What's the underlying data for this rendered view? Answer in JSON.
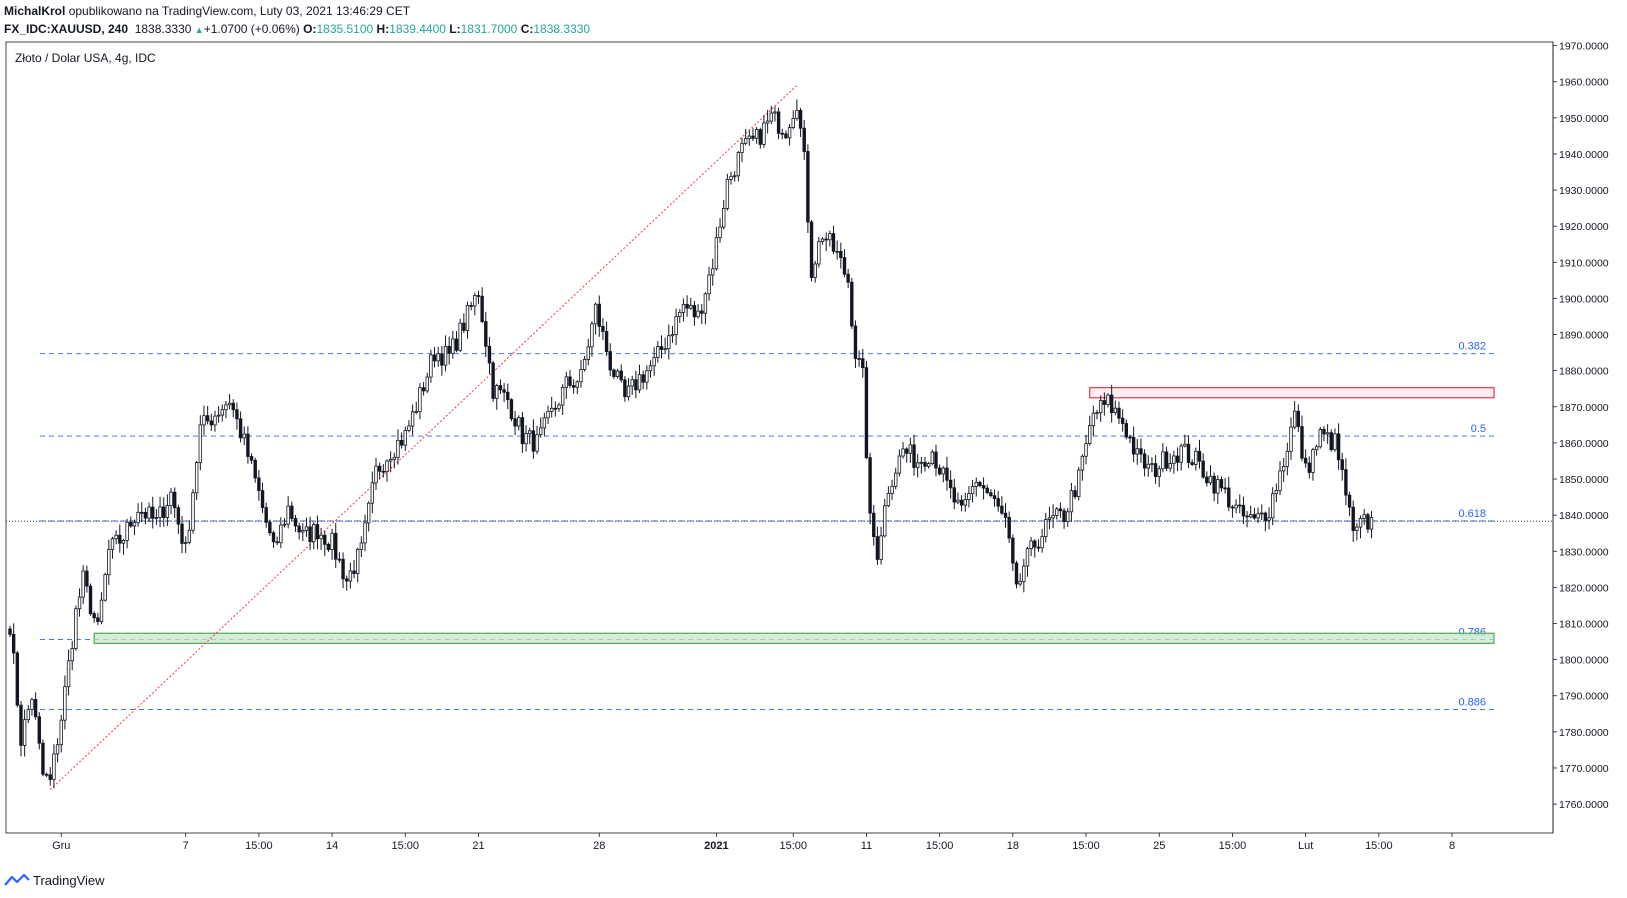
{
  "header": {
    "author": "MichalKrol",
    "published": "opublikowano na TradingView.com, Luty 03, 2021 13:46:29 CET",
    "symbol": "FX_IDC:XAUUSD, 240",
    "last": "1838.3330",
    "change": "+1.0700 (+0.06%)",
    "o_label": "O:",
    "o_value": "1835.5100",
    "h_label": "H:",
    "h_value": "1839.4400",
    "l_label": "L:",
    "l_value": "1831.7000",
    "c_label": "C:",
    "c_value": "1838.3330"
  },
  "footer": {
    "brand": "TradingView"
  },
  "colors": {
    "candle": "#131722",
    "fib_line": "#2962ff",
    "fib_text": "#2962ff",
    "trend": "#f23645",
    "support_fill": "#c8e6c9",
    "support_border": "#4caf50",
    "resistance_fill": "#fde7e9",
    "resistance_border": "#f23645",
    "axis_text": "#131722"
  },
  "chart_data": {
    "type": "candlestick",
    "title": "Złoto / Dolar USA, 4g, IDC",
    "ylim": [
      1752,
      1971
    ],
    "y_ticks": [
      "1760.0000",
      "1770.0000",
      "1780.0000",
      "1790.0000",
      "1800.0000",
      "1810.0000",
      "1820.0000",
      "1830.0000",
      "1840.0000",
      "1850.0000",
      "1860.0000",
      "1870.0000",
      "1880.0000",
      "1890.0000",
      "1900.0000",
      "1910.0000",
      "1920.0000",
      "1930.0000",
      "1940.0000",
      "1950.0000",
      "1960.0000",
      "1970.0000"
    ],
    "x_ticks": [
      {
        "label": "Gru",
        "i": 14
      },
      {
        "label": "7",
        "i": 48
      },
      {
        "label": "15:00",
        "i": 68
      },
      {
        "label": "14",
        "i": 88
      },
      {
        "label": "15:00",
        "i": 108
      },
      {
        "label": "21",
        "i": 128
      },
      {
        "label": "28",
        "i": 161
      },
      {
        "label": "2021",
        "i": 193,
        "bold": true
      },
      {
        "label": "15:00",
        "i": 214
      },
      {
        "label": "11",
        "i": 234
      },
      {
        "label": "15:00",
        "i": 254
      },
      {
        "label": "18",
        "i": 274
      },
      {
        "label": "15:00",
        "i": 294
      },
      {
        "label": "25",
        "i": 314
      },
      {
        "label": "15:00",
        "i": 334
      },
      {
        "label": "Lut",
        "i": 354
      },
      {
        "label": "15:00",
        "i": 374
      },
      {
        "label": "8",
        "i": 394
      }
    ],
    "fib_levels": [
      {
        "label": "0.382",
        "y": 1884.7
      },
      {
        "label": "0.5",
        "y": 1861.9
      },
      {
        "label": "0.618",
        "y": 1838.4
      },
      {
        "label": "0.786",
        "y": 1805.6
      },
      {
        "label": "0.886",
        "y": 1786.2
      }
    ],
    "current_price": 1838.333,
    "trendline": {
      "from": {
        "i": 11,
        "y": 1764
      },
      "to": {
        "i": 215,
        "y": 1959
      }
    },
    "zones": [
      {
        "name": "support",
        "i_start": 23,
        "y_low": 1804.5,
        "y_high": 1807.3
      },
      {
        "name": "resistance",
        "i_start": 295,
        "y_low": 1872.5,
        "y_high": 1875.3
      }
    ],
    "anchors": [
      {
        "i": 0,
        "p": 1810
      },
      {
        "i": 3,
        "p": 1778
      },
      {
        "i": 6,
        "p": 1790
      },
      {
        "i": 9,
        "p": 1768
      },
      {
        "i": 11,
        "p": 1766
      },
      {
        "i": 14,
        "p": 1784
      },
      {
        "i": 18,
        "p": 1813
      },
      {
        "i": 20,
        "p": 1822
      },
      {
        "i": 24,
        "p": 1808
      },
      {
        "i": 27,
        "p": 1830
      },
      {
        "i": 31,
        "p": 1834
      },
      {
        "i": 35,
        "p": 1842
      },
      {
        "i": 40,
        "p": 1838
      },
      {
        "i": 44,
        "p": 1846
      },
      {
        "i": 48,
        "p": 1830
      },
      {
        "i": 52,
        "p": 1864
      },
      {
        "i": 56,
        "p": 1868
      },
      {
        "i": 60,
        "p": 1872
      },
      {
        "i": 64,
        "p": 1860
      },
      {
        "i": 68,
        "p": 1846
      },
      {
        "i": 72,
        "p": 1830
      },
      {
        "i": 76,
        "p": 1842
      },
      {
        "i": 80,
        "p": 1834
      },
      {
        "i": 84,
        "p": 1836
      },
      {
        "i": 88,
        "p": 1832
      },
      {
        "i": 92,
        "p": 1822
      },
      {
        "i": 96,
        "p": 1830
      },
      {
        "i": 100,
        "p": 1852
      },
      {
        "i": 104,
        "p": 1858
      },
      {
        "i": 108,
        "p": 1862
      },
      {
        "i": 112,
        "p": 1873
      },
      {
        "i": 116,
        "p": 1885
      },
      {
        "i": 120,
        "p": 1884
      },
      {
        "i": 124,
        "p": 1893
      },
      {
        "i": 128,
        "p": 1902
      },
      {
        "i": 132,
        "p": 1875
      },
      {
        "i": 136,
        "p": 1872
      },
      {
        "i": 140,
        "p": 1862
      },
      {
        "i": 144,
        "p": 1860
      },
      {
        "i": 148,
        "p": 1868
      },
      {
        "i": 152,
        "p": 1876
      },
      {
        "i": 156,
        "p": 1878
      },
      {
        "i": 160,
        "p": 1897
      },
      {
        "i": 164,
        "p": 1882
      },
      {
        "i": 168,
        "p": 1872
      },
      {
        "i": 172,
        "p": 1878
      },
      {
        "i": 176,
        "p": 1882
      },
      {
        "i": 180,
        "p": 1890
      },
      {
        "i": 184,
        "p": 1898
      },
      {
        "i": 188,
        "p": 1895
      },
      {
        "i": 192,
        "p": 1910
      },
      {
        "i": 196,
        "p": 1932
      },
      {
        "i": 200,
        "p": 1941
      },
      {
        "i": 204,
        "p": 1944
      },
      {
        "i": 208,
        "p": 1950
      },
      {
        "i": 212,
        "p": 1947
      },
      {
        "i": 215,
        "p": 1955
      },
      {
        "i": 217,
        "p": 1938
      },
      {
        "i": 219,
        "p": 1908
      },
      {
        "i": 222,
        "p": 1918
      },
      {
        "i": 226,
        "p": 1912
      },
      {
        "i": 229,
        "p": 1905
      },
      {
        "i": 231,
        "p": 1885
      },
      {
        "i": 233,
        "p": 1878
      },
      {
        "i": 235,
        "p": 1838
      },
      {
        "i": 237,
        "p": 1830
      },
      {
        "i": 240,
        "p": 1848
      },
      {
        "i": 244,
        "p": 1858
      },
      {
        "i": 248,
        "p": 1855
      },
      {
        "i": 252,
        "p": 1858
      },
      {
        "i": 256,
        "p": 1848
      },
      {
        "i": 260,
        "p": 1840
      },
      {
        "i": 264,
        "p": 1850
      },
      {
        "i": 268,
        "p": 1845
      },
      {
        "i": 272,
        "p": 1838
      },
      {
        "i": 275,
        "p": 1818
      },
      {
        "i": 277,
        "p": 1826
      },
      {
        "i": 280,
        "p": 1832
      },
      {
        "i": 284,
        "p": 1838
      },
      {
        "i": 288,
        "p": 1840
      },
      {
        "i": 292,
        "p": 1850
      },
      {
        "i": 296,
        "p": 1868
      },
      {
        "i": 300,
        "p": 1871
      },
      {
        "i": 304,
        "p": 1866
      },
      {
        "i": 308,
        "p": 1856
      },
      {
        "i": 312,
        "p": 1852
      },
      {
        "i": 316,
        "p": 1856
      },
      {
        "i": 320,
        "p": 1858
      },
      {
        "i": 324,
        "p": 1855
      },
      {
        "i": 328,
        "p": 1850
      },
      {
        "i": 332,
        "p": 1846
      },
      {
        "i": 336,
        "p": 1840
      },
      {
        "i": 340,
        "p": 1838
      },
      {
        "i": 344,
        "p": 1842
      },
      {
        "i": 348,
        "p": 1855
      },
      {
        "i": 351,
        "p": 1868
      },
      {
        "i": 354,
        "p": 1852
      },
      {
        "i": 358,
        "p": 1862
      },
      {
        "i": 362,
        "p": 1860
      },
      {
        "i": 365,
        "p": 1846
      },
      {
        "i": 367,
        "p": 1834
      },
      {
        "i": 370,
        "p": 1838
      },
      {
        "i": 372,
        "p": 1838
      }
    ]
  }
}
